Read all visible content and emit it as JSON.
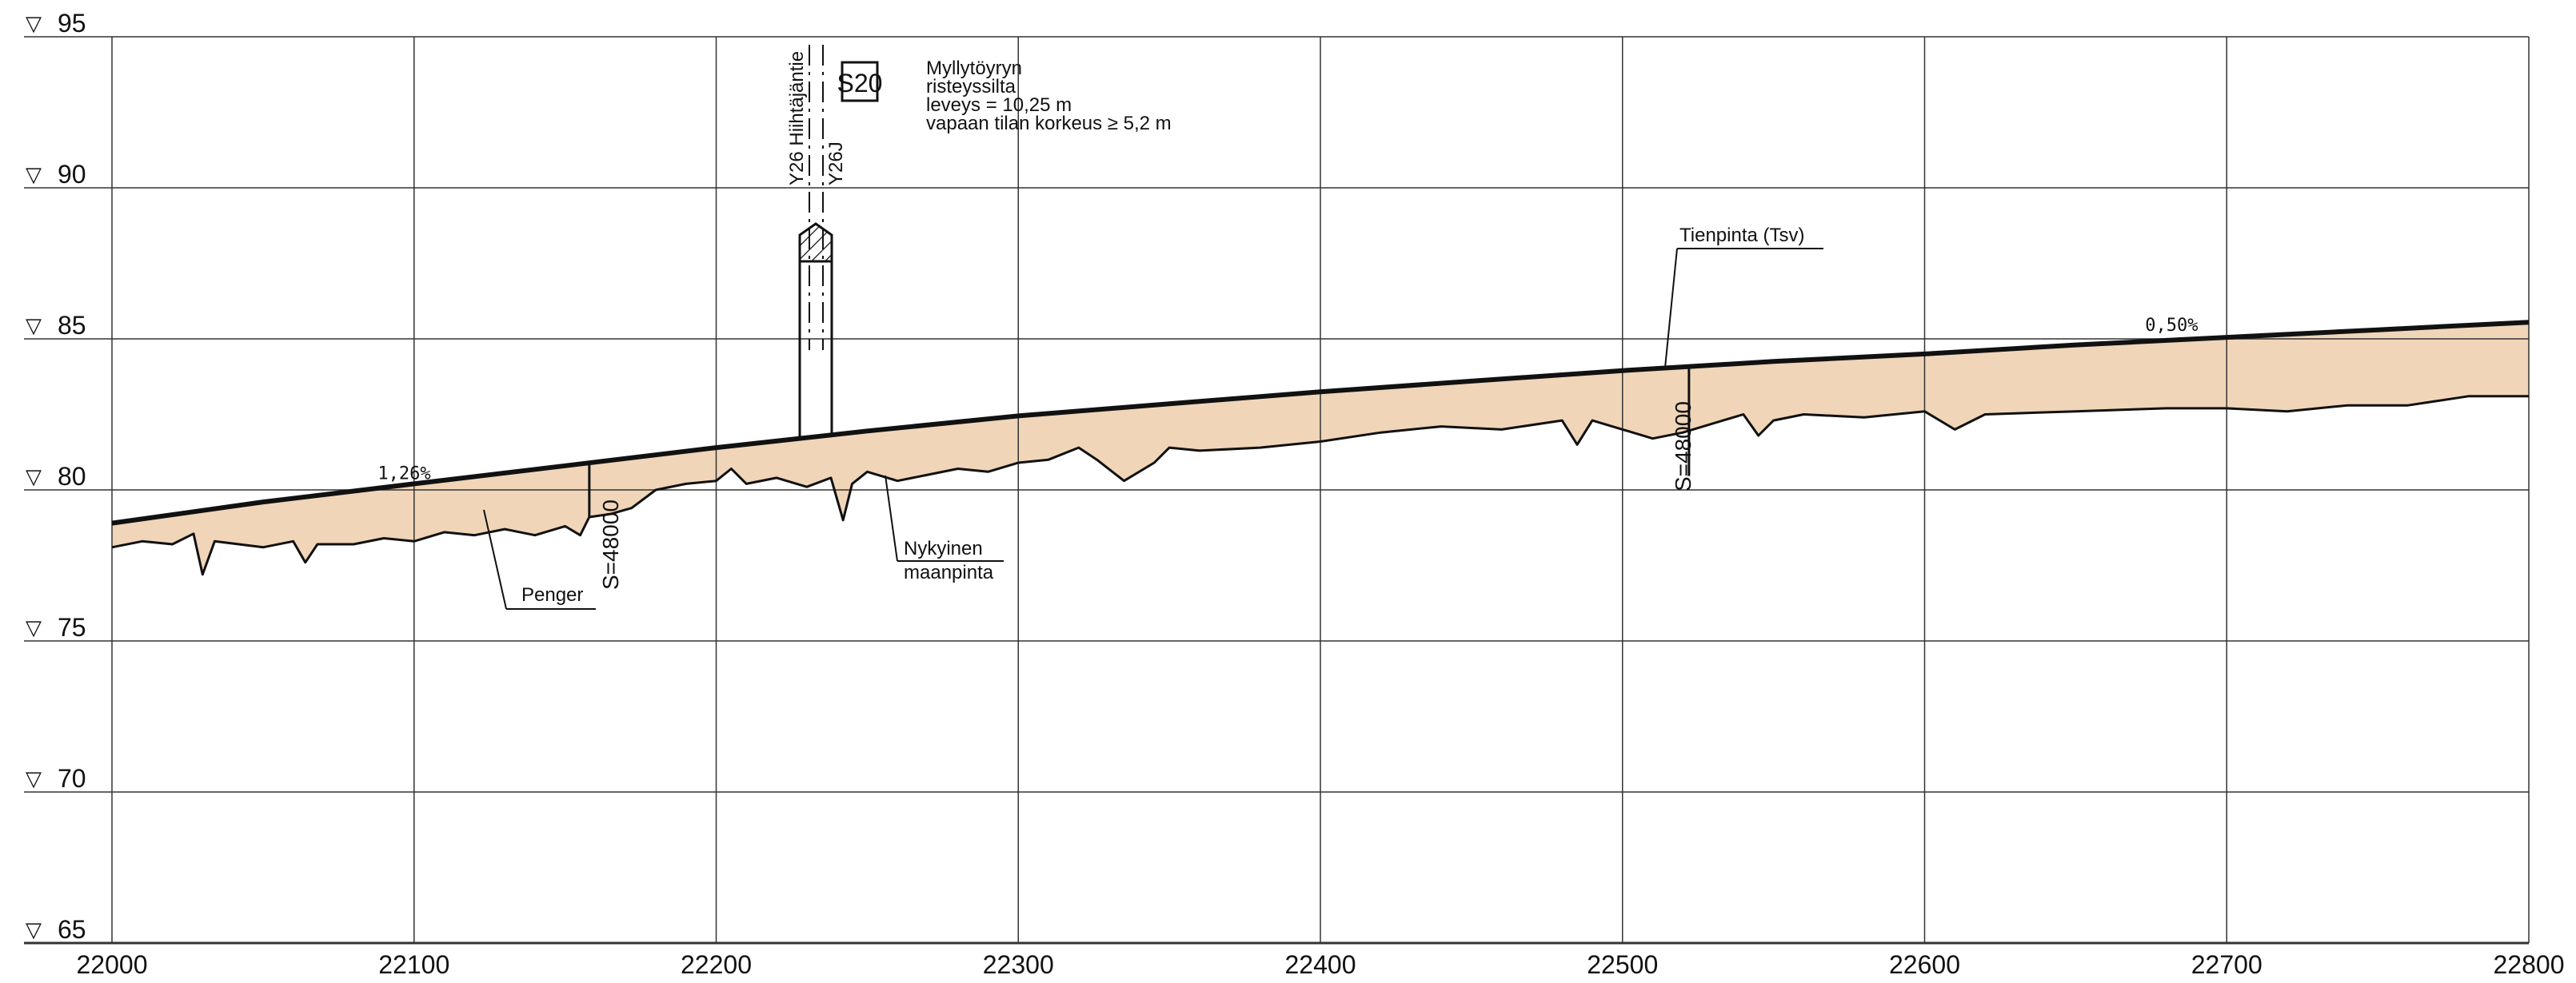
{
  "chart_data": {
    "type": "line",
    "x_ticks": [
      22000,
      22100,
      22200,
      22300,
      22400,
      22500,
      22600,
      22700,
      22800
    ],
    "y_ticks": [
      65,
      70,
      75,
      80,
      85,
      90,
      95
    ],
    "xlim": [
      22000,
      22800
    ],
    "ylim": [
      65,
      95
    ],
    "grid": true,
    "series": [
      {
        "name": "Tienpinta (Tsv)",
        "points": [
          [
            22000,
            78.9
          ],
          [
            22050,
            79.6
          ],
          [
            22100,
            80.2
          ],
          [
            22150,
            80.8
          ],
          [
            22200,
            81.4
          ],
          [
            22250,
            81.95
          ],
          [
            22300,
            82.45
          ],
          [
            22350,
            82.85
          ],
          [
            22400,
            83.25
          ],
          [
            22450,
            83.6
          ],
          [
            22500,
            83.95
          ],
          [
            22550,
            84.25
          ],
          [
            22600,
            84.5
          ],
          [
            22650,
            84.8
          ],
          [
            22700,
            85.05
          ],
          [
            22750,
            85.3
          ],
          [
            22800,
            85.55
          ]
        ]
      },
      {
        "name": "Nykyinen maanpinta",
        "points": [
          [
            22000,
            78.1
          ],
          [
            22010,
            78.3
          ],
          [
            22020,
            78.2
          ],
          [
            22027,
            78.55
          ],
          [
            22030,
            77.2
          ],
          [
            22034,
            78.3
          ],
          [
            22050,
            78.1
          ],
          [
            22060,
            78.3
          ],
          [
            22064,
            77.6
          ],
          [
            22068,
            78.2
          ],
          [
            22080,
            78.2
          ],
          [
            22090,
            78.4
          ],
          [
            22100,
            78.3
          ],
          [
            22110,
            78.6
          ],
          [
            22120,
            78.5
          ],
          [
            22130,
            78.7
          ],
          [
            22140,
            78.5
          ],
          [
            22150,
            78.8
          ],
          [
            22155,
            78.5
          ],
          [
            22158,
            79.1
          ],
          [
            22165,
            79.2
          ],
          [
            22172,
            79.4
          ],
          [
            22180,
            80.0
          ],
          [
            22190,
            80.2
          ],
          [
            22200,
            80.3
          ],
          [
            22205,
            80.7
          ],
          [
            22210,
            80.2
          ],
          [
            22220,
            80.4
          ],
          [
            22230,
            80.1
          ],
          [
            22238,
            80.4
          ],
          [
            22242,
            79.0
          ],
          [
            22245,
            80.2
          ],
          [
            22250,
            80.6
          ],
          [
            22260,
            80.3
          ],
          [
            22270,
            80.5
          ],
          [
            22280,
            80.7
          ],
          [
            22290,
            80.6
          ],
          [
            22300,
            80.9
          ],
          [
            22310,
            81.0
          ],
          [
            22320,
            81.4
          ],
          [
            22326,
            81.0
          ],
          [
            22335,
            80.3
          ],
          [
            22345,
            80.9
          ],
          [
            22350,
            81.4
          ],
          [
            22360,
            81.3
          ],
          [
            22380,
            81.4
          ],
          [
            22400,
            81.6
          ],
          [
            22420,
            81.9
          ],
          [
            22440,
            82.1
          ],
          [
            22460,
            82.0
          ],
          [
            22480,
            82.3
          ],
          [
            22485,
            81.5
          ],
          [
            22490,
            82.3
          ],
          [
            22500,
            82.0
          ],
          [
            22510,
            81.7
          ],
          [
            22520,
            81.9
          ],
          [
            22530,
            82.2
          ],
          [
            22540,
            82.5
          ],
          [
            22545,
            81.8
          ],
          [
            22550,
            82.3
          ],
          [
            22560,
            82.5
          ],
          [
            22580,
            82.4
          ],
          [
            22600,
            82.6
          ],
          [
            22610,
            82.0
          ],
          [
            22620,
            82.5
          ],
          [
            22650,
            82.6
          ],
          [
            22680,
            82.7
          ],
          [
            22700,
            82.7
          ],
          [
            22720,
            82.6
          ],
          [
            22740,
            82.8
          ],
          [
            22760,
            82.8
          ],
          [
            22780,
            83.1
          ],
          [
            22800,
            83.1
          ]
        ]
      }
    ]
  },
  "gradients": [
    {
      "text": "1,26%",
      "x": 22088,
      "y": 80.2
    },
    {
      "text": "0,50%",
      "x": 22673,
      "y": 85.1
    }
  ],
  "level_symbol": "▽",
  "labels": {
    "tienpinta": "Tienpinta (Tsv)",
    "penger": "Penger",
    "nykyinen_1": "Nykyinen",
    "nykyinen_2": "maanpinta",
    "s_marker_1": "S=48000",
    "s_marker_2": "S=48000"
  },
  "bridge": {
    "id": "S20",
    "lines": [
      "Myllytöyryn",
      "risteyssilta",
      "leveys = 10,25 m",
      "vapaan tilan korkeus ≥ 5,2 m"
    ],
    "road_1": "Y26 Hiihtäjäntie",
    "road_2": "Y26J"
  },
  "colors": {
    "fill": "#f0d5b8",
    "line": "#111111",
    "grid": "#333333",
    "background": "#ffffff"
  }
}
